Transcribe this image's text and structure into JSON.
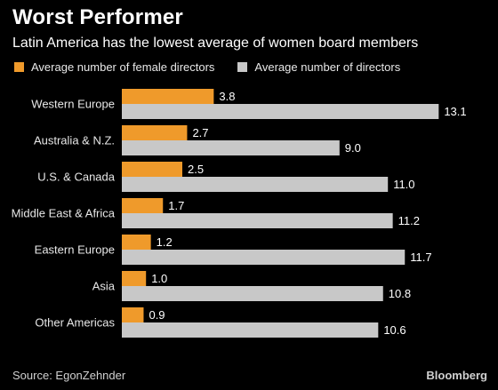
{
  "title": "Worst Performer",
  "subtitle": "Latin America has the lowest average of women board members",
  "source": "Source: EgonZehnder",
  "brand": "Bloomberg",
  "colors": {
    "female": "#ef9a2b",
    "total": "#c8c8c8",
    "background": "#000000"
  },
  "chart_data": {
    "type": "bar",
    "orientation": "horizontal",
    "title": "Worst Performer",
    "subtitle": "Latin America has the lowest average of women board members",
    "categories": [
      "Western Europe",
      "Australia & N.Z.",
      "U.S. & Canada",
      "Middle East & Africa",
      "Eastern Europe",
      "Asia",
      "Other Americas"
    ],
    "series": [
      {
        "name": "Average number of female directors",
        "values": [
          3.8,
          2.7,
          2.5,
          1.7,
          1.2,
          1.0,
          0.9
        ],
        "labels": [
          "3.8",
          "2.7",
          "2.5",
          "1.7",
          "1.2",
          "1.0",
          "0.9"
        ]
      },
      {
        "name": "Average number of directors",
        "values": [
          13.1,
          9.0,
          11.0,
          11.2,
          11.7,
          10.8,
          10.6
        ],
        "labels": [
          "13.1",
          "9.0",
          "11.0",
          "11.2",
          "11.7",
          "10.8",
          "10.6"
        ]
      }
    ],
    "legend_position": "top-left",
    "grid": false
  }
}
